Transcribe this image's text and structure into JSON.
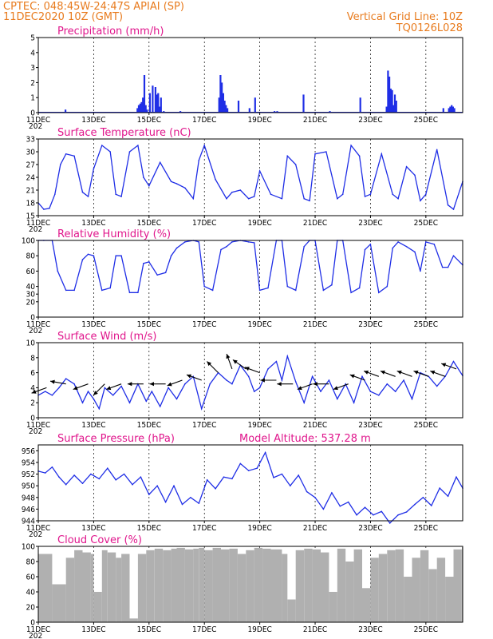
{
  "header": {
    "line1_left": "CPTEC:   048:45W-24:47S   APIAI (SP)",
    "line2_left": "11DEC2020 10Z (GMT)",
    "line1_right": "Vertical Grid Line: 10Z",
    "line2_right": "TQ0126L028"
  },
  "colors": {
    "series": "#1f2ee6",
    "title": "#e0168c",
    "header": "#e87b1e",
    "cloud": "#b0b0b0"
  },
  "x_axis": {
    "ticks": [
      "11DEC",
      "13DEC",
      "15DEC",
      "17DEC",
      "19DEC",
      "21DEC",
      "23DEC",
      "25DEC"
    ],
    "tick_days": [
      0,
      2,
      4,
      6,
      8,
      10,
      12,
      14
    ],
    "range_days": [
      0,
      15.33
    ],
    "under_first_tick": "202"
  },
  "chart_data": [
    {
      "type": "bar",
      "title": "Precipitation (mm/h)",
      "ylim": [
        0,
        5
      ],
      "yticks": [
        0,
        1,
        2,
        3,
        4,
        5
      ],
      "x_days": [
        0.95,
        3.55,
        3.6,
        3.65,
        3.7,
        3.75,
        3.8,
        3.85,
        3.9,
        4.0,
        4.1,
        4.2,
        4.25,
        4.3,
        4.35,
        4.4,
        4.5,
        5.1,
        6.5,
        6.55,
        6.6,
        6.65,
        6.7,
        6.75,
        6.8,
        7.2,
        7.6,
        7.8,
        8.5,
        8.6,
        9.55,
        10.5,
        11.6,
        12.55,
        12.6,
        12.65,
        12.7,
        12.75,
        12.8,
        12.85,
        12.9,
        14.6,
        14.8,
        14.85,
        14.9,
        14.95,
        15.0
      ],
      "values": [
        0.2,
        0.3,
        0.5,
        0.6,
        0.7,
        1.0,
        2.5,
        0.5,
        0.2,
        1.3,
        1.8,
        1.7,
        1.2,
        1.3,
        0.4,
        1.0,
        0.1,
        0.1,
        1.0,
        2.5,
        2.0,
        1.3,
        0.8,
        0.5,
        0.3,
        0.8,
        0.3,
        1.0,
        0.1,
        0.1,
        1.2,
        0.1,
        1.0,
        0.4,
        2.8,
        2.4,
        1.6,
        1.5,
        0.5,
        1.2,
        0.8,
        0.3,
        0.3,
        0.4,
        0.5,
        0.4,
        0.3
      ]
    },
    {
      "type": "line",
      "title": "Surface Temperature (nC)",
      "ylim": [
        15,
        33
      ],
      "yticks": [
        15,
        18,
        21,
        24,
        27,
        30,
        33
      ],
      "x_days": [
        0,
        0.2,
        0.4,
        0.6,
        0.8,
        1.0,
        1.3,
        1.6,
        1.8,
        2.0,
        2.3,
        2.6,
        2.8,
        3.0,
        3.3,
        3.6,
        3.8,
        4.0,
        4.4,
        4.8,
        5.0,
        5.3,
        5.6,
        5.8,
        6.0,
        6.4,
        6.8,
        7.0,
        7.3,
        7.6,
        7.8,
        8.0,
        8.4,
        8.8,
        9.0,
        9.3,
        9.6,
        9.8,
        10.0,
        10.4,
        10.8,
        11.0,
        11.3,
        11.6,
        11.8,
        12.0,
        12.4,
        12.8,
        13.0,
        13.3,
        13.6,
        13.8,
        14.0,
        14.4,
        14.8,
        15.0,
        15.33
      ],
      "values": [
        18,
        16.5,
        16.7,
        20,
        27,
        29.5,
        29,
        20.5,
        19.5,
        26,
        31.5,
        30,
        20,
        19.5,
        30,
        31.5,
        24,
        22,
        27.5,
        23,
        22.5,
        21.5,
        19,
        28,
        31.5,
        23.5,
        19,
        20.5,
        21,
        19,
        19.5,
        25.5,
        20,
        19,
        29,
        27,
        19,
        18.5,
        29.5,
        30,
        19,
        20,
        31.5,
        29,
        19.5,
        20,
        29.5,
        20,
        19,
        26.5,
        24.5,
        18.5,
        20,
        30.5,
        17.5,
        16.5,
        23
      ]
    },
    {
      "type": "line",
      "title": "Relative Humidity (%)",
      "ylim": [
        0,
        100
      ],
      "yticks": [
        0,
        20,
        30,
        40,
        60,
        80,
        100
      ],
      "x_days": [
        0,
        0.2,
        0.5,
        0.7,
        1.0,
        1.3,
        1.6,
        1.8,
        2.0,
        2.3,
        2.6,
        2.8,
        3.0,
        3.3,
        3.6,
        3.8,
        4.0,
        4.3,
        4.6,
        4.8,
        5.0,
        5.3,
        5.6,
        5.8,
        6.0,
        6.3,
        6.6,
        6.8,
        7.0,
        7.3,
        7.6,
        7.8,
        8.0,
        8.3,
        8.6,
        8.8,
        9.0,
        9.3,
        9.6,
        9.8,
        10.0,
        10.3,
        10.6,
        10.8,
        11.0,
        11.3,
        11.6,
        11.8,
        12.0,
        12.3,
        12.6,
        12.8,
        13.0,
        13.3,
        13.6,
        13.8,
        14.0,
        14.3,
        14.6,
        14.8,
        15.0,
        15.33
      ],
      "values": [
        100,
        100,
        100,
        60,
        35,
        35,
        75,
        82,
        80,
        35,
        38,
        80,
        80,
        32,
        32,
        70,
        72,
        55,
        58,
        80,
        90,
        98,
        100,
        98,
        40,
        35,
        88,
        92,
        98,
        100,
        98,
        97,
        35,
        38,
        100,
        100,
        40,
        35,
        92,
        100,
        100,
        35,
        42,
        100,
        100,
        32,
        38,
        88,
        95,
        32,
        40,
        90,
        98,
        92,
        85,
        60,
        98,
        95,
        65,
        65,
        80,
        68
      ]
    },
    {
      "type": "line",
      "title": "Surface Wind (m/s)",
      "ylim": [
        0,
        10
      ],
      "yticks": [
        0,
        2,
        4,
        6,
        8,
        10
      ],
      "x_days": [
        0,
        0.25,
        0.5,
        0.75,
        1.0,
        1.3,
        1.6,
        1.8,
        2.0,
        2.2,
        2.4,
        2.7,
        3.0,
        3.3,
        3.6,
        3.9,
        4.1,
        4.4,
        4.7,
        5.0,
        5.3,
        5.6,
        5.9,
        6.2,
        6.5,
        6.8,
        7.0,
        7.3,
        7.6,
        7.8,
        8.0,
        8.3,
        8.6,
        8.8,
        9.0,
        9.3,
        9.6,
        9.9,
        10.2,
        10.5,
        10.8,
        11.1,
        11.4,
        11.7,
        12.0,
        12.3,
        12.6,
        12.9,
        13.2,
        13.5,
        13.8,
        14.1,
        14.4,
        14.7,
        15.0,
        15.33
      ],
      "values": [
        3,
        3.5,
        3,
        4,
        5.2,
        4.5,
        2,
        3.5,
        2.5,
        1.2,
        4,
        3,
        4.2,
        2,
        4.5,
        2.2,
        3.5,
        1.5,
        4,
        2.5,
        4.5,
        5.5,
        1.2,
        4.5,
        6,
        5,
        4.5,
        7,
        5.5,
        3.5,
        4,
        6.5,
        7.5,
        5,
        8.2,
        4.8,
        2,
        5.5,
        3.5,
        5,
        2.5,
        4.5,
        2,
        5.5,
        3.5,
        3,
        4.5,
        3.5,
        5,
        2.5,
        6,
        5.5,
        4.2,
        5.5,
        7.5,
        5.6
      ]
    },
    {
      "type": "line",
      "title": "Surface Pressure (hPa)",
      "annotation": "Model Altitude: 537.28 m",
      "ylim": [
        944,
        957
      ],
      "yticks": [
        944,
        946,
        948,
        950,
        952,
        954,
        956
      ],
      "x_days": [
        0,
        0.25,
        0.5,
        0.75,
        1.0,
        1.3,
        1.6,
        1.9,
        2.2,
        2.5,
        2.8,
        3.1,
        3.4,
        3.7,
        4.0,
        4.3,
        4.6,
        4.9,
        5.2,
        5.5,
        5.8,
        6.1,
        6.4,
        6.7,
        7.0,
        7.3,
        7.6,
        7.9,
        8.2,
        8.5,
        8.8,
        9.1,
        9.4,
        9.7,
        10.0,
        10.3,
        10.6,
        10.9,
        11.2,
        11.5,
        11.8,
        12.1,
        12.4,
        12.7,
        13.0,
        13.3,
        13.6,
        13.9,
        14.2,
        14.5,
        14.8,
        15.1,
        15.33
      ],
      "values": [
        952.5,
        952.2,
        953.2,
        951.5,
        950.2,
        951.8,
        950.4,
        952.0,
        951.2,
        953.0,
        951.0,
        952.0,
        950.2,
        951.5,
        948.5,
        950.0,
        947.2,
        950.0,
        946.8,
        948.0,
        947.0,
        951.0,
        949.5,
        951.5,
        951.2,
        953.8,
        952.6,
        953.0,
        955.7,
        951.4,
        952.0,
        950.0,
        951.8,
        949.0,
        948.0,
        946.0,
        948.8,
        946.5,
        947.2,
        945.0,
        946.3,
        945.0,
        945.6,
        943.6,
        945.0,
        945.5,
        946.8,
        948.0,
        946.6,
        949.6,
        948.2,
        951.5,
        949.6
      ]
    },
    {
      "type": "bar",
      "title": "Cloud Cover (%)",
      "ylim": [
        0,
        100
      ],
      "yticks": [
        0,
        20,
        40,
        60,
        80,
        100
      ],
      "x_days": [
        0,
        0.5,
        1.0,
        1.3,
        1.6,
        1.9,
        2.0,
        2.3,
        2.5,
        2.8,
        3.0,
        3.3,
        3.6,
        3.9,
        4.2,
        4.5,
        4.8,
        5.0,
        5.3,
        5.6,
        5.8,
        6.0,
        6.3,
        6.6,
        6.9,
        7.2,
        7.5,
        7.8,
        8.1,
        8.4,
        8.8,
        9.0,
        9.3,
        9.6,
        9.9,
        10.2,
        10.5,
        10.8,
        11.1,
        11.4,
        11.7,
        12.0,
        12.3,
        12.6,
        12.9,
        13.2,
        13.5,
        13.8,
        14.1,
        14.4,
        14.7,
        15.0,
        15.3
      ],
      "values": [
        90,
        50,
        85,
        95,
        92,
        90,
        40,
        95,
        92,
        85,
        90,
        5,
        90,
        95,
        97,
        95,
        97,
        98,
        96,
        97,
        98,
        95,
        98,
        96,
        97,
        90,
        95,
        98,
        97,
        96,
        90,
        30,
        95,
        97,
        96,
        92,
        40,
        97,
        80,
        96,
        45,
        85,
        90,
        95,
        96,
        60,
        85,
        95,
        70,
        85,
        60,
        96,
        99
      ]
    }
  ],
  "wind_arrows": {
    "x_days": [
      0.3,
      1.0,
      1.8,
      2.4,
      3.0,
      3.8,
      4.6,
      5.2,
      5.9,
      6.5,
      7.0,
      7.5,
      8.0,
      8.6,
      9.2,
      9.9,
      10.5,
      11.2,
      11.8,
      12.3,
      12.9,
      13.5,
      14.1,
      14.7,
      15.1
    ],
    "speed_ms": [
      4,
      4.5,
      4.5,
      4.5,
      4.5,
      4.5,
      4.5,
      5,
      5,
      6,
      6.5,
      6.5,
      6,
      5,
      4.5,
      4.5,
      4.5,
      4.5,
      5,
      5.5,
      5.5,
      5.5,
      5.5,
      5.5,
      6.5
    ],
    "dir_deg": [
      200,
      170,
      200,
      225,
      200,
      180,
      180,
      200,
      160,
      135,
      110,
      145,
      160,
      180,
      180,
      200,
      180,
      200,
      160,
      160,
      160,
      160,
      160,
      160,
      160
    ]
  }
}
